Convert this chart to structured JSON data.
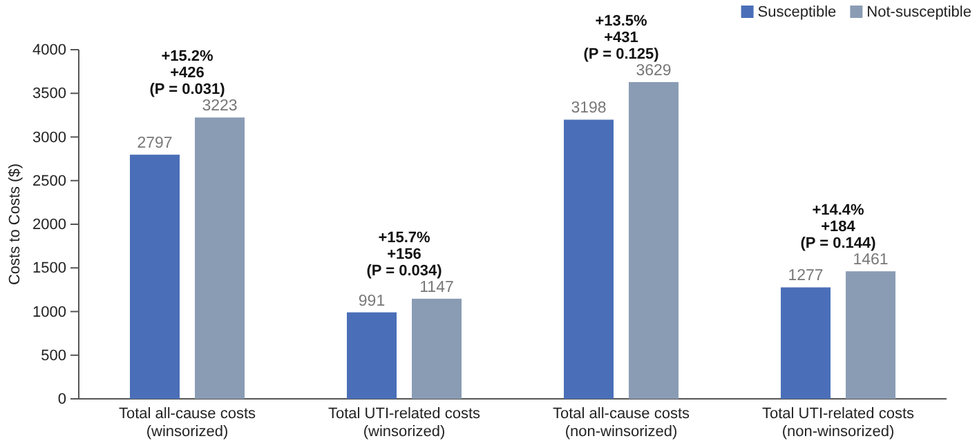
{
  "chart_data": {
    "type": "bar",
    "ylabel": "Costs to Costs ($)",
    "categories": [
      "Total all-cause costs\n(winsorized)",
      "Total UTI-related costs\n(winsorized)",
      "Total all-cause costs\n(non-winsorized)",
      "Total UTI-related costs\n(non-winsorized)"
    ],
    "series": [
      {
        "name": "Susceptible",
        "color": "#4a6fb8",
        "values": [
          2797,
          991,
          3198,
          1277
        ]
      },
      {
        "name": "Not-susceptible",
        "color": "#8a9cb4",
        "values": [
          3223,
          1147,
          3629,
          1461
        ]
      }
    ],
    "ylim": [
      0,
      4000
    ],
    "yticks": [
      0,
      500,
      1000,
      1500,
      2000,
      2500,
      3000,
      3500,
      4000
    ],
    "data_labels": true,
    "legend": "top right",
    "grid": false,
    "annotations": [
      "+15.2%\n+426\n(P = 0.031)",
      "+15.7%\n+156\n(P = 0.034)",
      "+13.5%\n+431\n(P = 0.125)",
      "+14.4%\n+184\n(P = 0.144)"
    ]
  }
}
